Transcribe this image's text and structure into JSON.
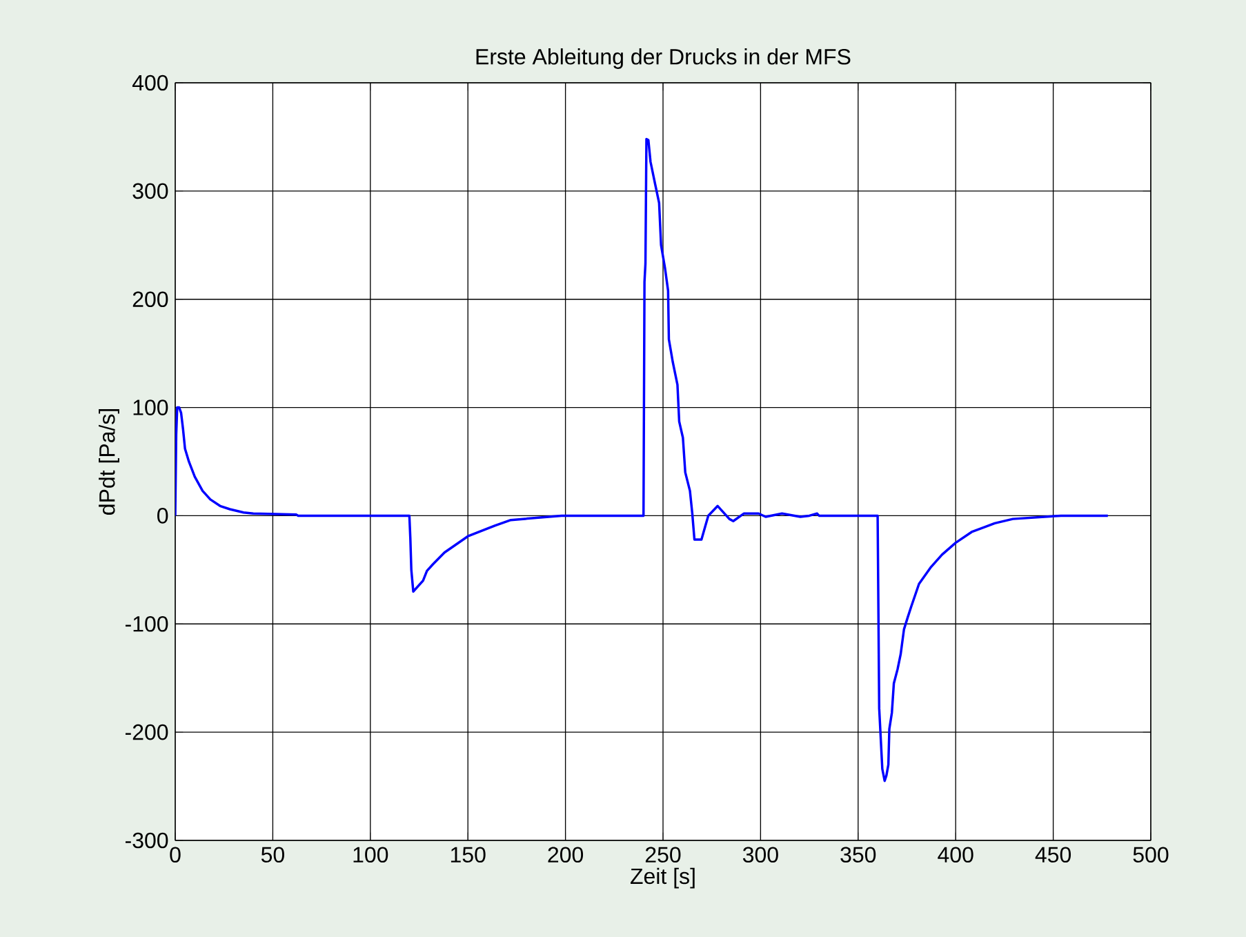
{
  "chart_data": {
    "type": "line",
    "title": "Erste Ableitung der Drucks in der MFS",
    "xlabel": "Zeit [s]",
    "ylabel": "dPdt [Pa/s]",
    "x": [
      0,
      0.5,
      1,
      2,
      3,
      4,
      5,
      7,
      10,
      14,
      18,
      23,
      28,
      35,
      40,
      62,
      63,
      120,
      120.5,
      121,
      122,
      127,
      129,
      132,
      138,
      150,
      164,
      172,
      198,
      240,
      240.5,
      241,
      241.5,
      242.5,
      243.6,
      246,
      248,
      249,
      251,
      252.6,
      253,
      255,
      257.4,
      258.3,
      260.2,
      261.4,
      263.8,
      265,
      266.1,
      269.7,
      273.2,
      278,
      284,
      286,
      291.4,
      299,
      302.6,
      311,
      320.4,
      325,
      329,
      330,
      360,
      360.8,
      362.4,
      363.6,
      364.5,
      365.5,
      366,
      367.3,
      368.3,
      370.2,
      371.8,
      373.5,
      375.4,
      377.2,
      381.2,
      387.1,
      393,
      400,
      408.2,
      420,
      429.3,
      454,
      478
    ],
    "values": [
      0,
      75,
      100,
      100,
      95,
      80,
      62,
      50,
      36,
      23,
      15,
      9,
      6,
      3,
      2,
      1,
      0,
      0,
      -21,
      -50,
      -70,
      -60,
      -51,
      -45,
      -34,
      -19,
      -9,
      -4,
      0,
      0,
      216,
      233,
      348,
      347,
      327,
      306,
      289,
      250,
      229,
      208,
      163,
      142,
      121,
      87,
      72,
      40,
      23,
      2,
      -22,
      -22,
      0,
      9,
      -3,
      -5,
      2,
      2,
      -1,
      2,
      -1,
      0,
      2,
      0,
      0,
      -178,
      -234,
      -245,
      -240,
      -230,
      -197,
      -182,
      -155,
      -142,
      -128,
      -105,
      -94,
      -84,
      -63,
      -48,
      -36,
      -25,
      -15,
      -7,
      -3,
      0,
      0
    ],
    "color": "#0000ff",
    "xlim": [
      0,
      500
    ],
    "ylim": [
      -300,
      400
    ],
    "xticks": [
      0,
      50,
      100,
      150,
      200,
      250,
      300,
      350,
      400,
      450,
      500
    ],
    "yticks": [
      -300,
      -200,
      -100,
      0,
      100,
      200,
      300,
      400
    ],
    "grid": true,
    "marker": "none",
    "line_style": "solid"
  }
}
